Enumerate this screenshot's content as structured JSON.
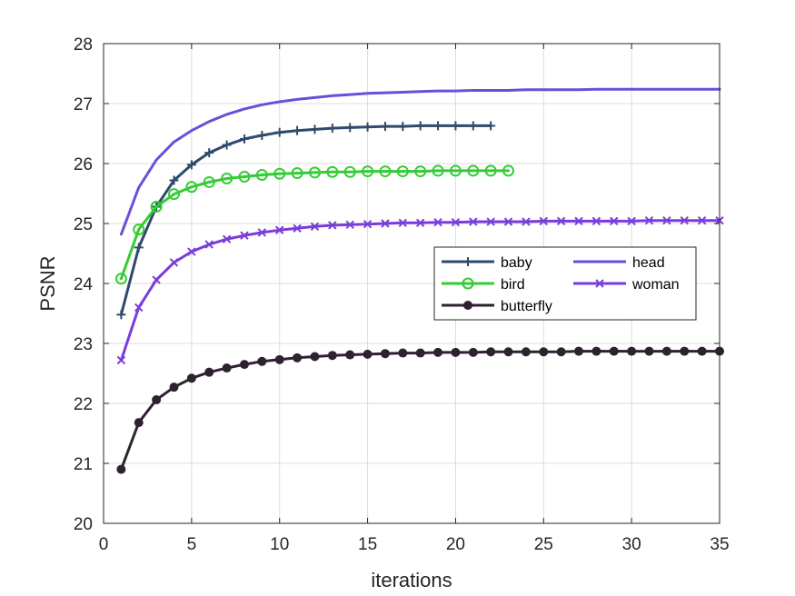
{
  "chart_data": {
    "type": "line",
    "title": "",
    "xlabel": "iterations",
    "ylabel": "PSNR",
    "xlim": [
      0,
      35
    ],
    "ylim": [
      20,
      28
    ],
    "xticks": [
      "0",
      "5",
      "10",
      "15",
      "20",
      "25",
      "30",
      "35"
    ],
    "yticks": [
      "20",
      "21",
      "22",
      "23",
      "24",
      "25",
      "26",
      "27",
      "28"
    ],
    "grid": true,
    "legend_position": "center-right",
    "series": [
      {
        "name": "baby",
        "color": "#2f4a6d",
        "marker": "plus",
        "x": [
          1,
          2,
          3,
          4,
          5,
          6,
          7,
          8,
          9,
          10,
          11,
          12,
          13,
          14,
          15,
          16,
          17,
          18,
          19,
          20,
          21,
          22
        ],
        "y": [
          23.48,
          24.6,
          25.28,
          25.72,
          25.98,
          26.18,
          26.31,
          26.41,
          26.47,
          26.52,
          26.55,
          26.57,
          26.59,
          26.6,
          26.61,
          26.62,
          26.62,
          26.63,
          26.63,
          26.63,
          26.63,
          26.63
        ]
      },
      {
        "name": "bird",
        "color": "#33cc33",
        "marker": "circle",
        "x": [
          1,
          2,
          3,
          4,
          5,
          6,
          7,
          8,
          9,
          10,
          11,
          12,
          13,
          14,
          15,
          16,
          17,
          18,
          19,
          20,
          21,
          22,
          23
        ],
        "y": [
          24.08,
          24.9,
          25.28,
          25.49,
          25.61,
          25.69,
          25.75,
          25.78,
          25.81,
          25.83,
          25.84,
          25.85,
          25.86,
          25.86,
          25.87,
          25.87,
          25.87,
          25.87,
          25.88,
          25.88,
          25.88,
          25.88,
          25.88
        ]
      },
      {
        "name": "butterfly",
        "color": "#2e2230",
        "marker": "dot",
        "x": [
          1,
          2,
          3,
          4,
          5,
          6,
          7,
          8,
          9,
          10,
          11,
          12,
          13,
          14,
          15,
          16,
          17,
          18,
          19,
          20,
          21,
          22,
          23,
          24,
          25,
          26,
          27,
          28,
          29,
          30,
          31,
          32,
          33,
          34,
          35
        ],
        "y": [
          20.9,
          21.68,
          22.06,
          22.27,
          22.42,
          22.52,
          22.59,
          22.65,
          22.7,
          22.73,
          22.76,
          22.78,
          22.8,
          22.81,
          22.82,
          22.83,
          22.84,
          22.84,
          22.85,
          22.85,
          22.85,
          22.86,
          22.86,
          22.86,
          22.86,
          22.86,
          22.87,
          22.87,
          22.87,
          22.87,
          22.87,
          22.87,
          22.87,
          22.87,
          22.87
        ]
      },
      {
        "name": "head",
        "color": "#6a4fd8",
        "marker": "none",
        "x": [
          1,
          2,
          3,
          4,
          5,
          6,
          7,
          8,
          9,
          10,
          11,
          12,
          13,
          14,
          15,
          16,
          17,
          18,
          19,
          20,
          21,
          22,
          23,
          24,
          25,
          26,
          27,
          28,
          29,
          30,
          31,
          32,
          33,
          34,
          35
        ],
        "y": [
          24.82,
          25.6,
          26.06,
          26.36,
          26.55,
          26.7,
          26.82,
          26.91,
          26.98,
          27.03,
          27.07,
          27.1,
          27.13,
          27.15,
          27.17,
          27.18,
          27.19,
          27.2,
          27.21,
          27.21,
          27.22,
          27.22,
          27.22,
          27.23,
          27.23,
          27.23,
          27.23,
          27.24,
          27.24,
          27.24,
          27.24,
          27.24,
          27.24,
          27.24,
          27.24
        ]
      },
      {
        "name": "woman",
        "color": "#7a3ddb",
        "marker": "x",
        "x": [
          1,
          2,
          3,
          4,
          5,
          6,
          7,
          8,
          9,
          10,
          11,
          12,
          13,
          14,
          15,
          16,
          17,
          18,
          19,
          20,
          21,
          22,
          23,
          24,
          25,
          26,
          27,
          28,
          29,
          30,
          31,
          32,
          33,
          34,
          35
        ],
        "y": [
          22.72,
          23.6,
          24.06,
          24.35,
          24.53,
          24.65,
          24.74,
          24.8,
          24.85,
          24.89,
          24.92,
          24.95,
          24.97,
          24.98,
          24.99,
          25.0,
          25.01,
          25.01,
          25.02,
          25.02,
          25.03,
          25.03,
          25.03,
          25.03,
          25.04,
          25.04,
          25.04,
          25.04,
          25.04,
          25.04,
          25.05,
          25.05,
          25.05,
          25.05,
          25.05
        ]
      }
    ]
  }
}
